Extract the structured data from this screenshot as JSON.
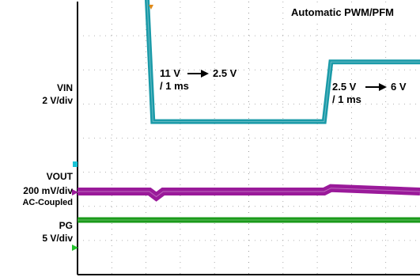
{
  "chart_data": {
    "type": "line",
    "title": "Automatic PWM/PFM",
    "x_divisions": 10,
    "y_divisions": 8,
    "series": [
      {
        "name": "VIN",
        "scale": "2 V/div",
        "color": "#1a9aa8",
        "x": [
          0,
          2.0,
          2.2,
          7.2,
          7.4,
          10
        ],
        "y": [
          11,
          11,
          2.5,
          2.5,
          6,
          6
        ]
      },
      {
        "name": "VOUT",
        "scale": "200 mV/div",
        "coupling": "AC-Coupled",
        "color": "#9a1a9a",
        "x": [
          0,
          2.1,
          2.3,
          2.5,
          7.2,
          7.4,
          10
        ],
        "y": [
          0,
          0,
          -0.03,
          0,
          0,
          0.02,
          0
        ]
      },
      {
        "name": "PG",
        "scale": "5 V/div",
        "color": "#1a9a1a",
        "x": [
          0,
          10
        ],
        "y": [
          5,
          5
        ]
      }
    ],
    "annotations": [
      {
        "lines": [
          "11 V",
          "2.5 V",
          "/ 1 ms"
        ]
      },
      {
        "lines": [
          "2.5 V",
          "6 V",
          "/ 1 ms"
        ]
      }
    ],
    "labels": {
      "vin_name": "VIN",
      "vin_scale": "2 V/div",
      "vout_name": "VOUT",
      "vout_scale": "200 mV/div",
      "vout_coupling": "AC-Coupled",
      "pg_name": "PG",
      "pg_scale": "5 V/div"
    },
    "grid": true,
    "legend": "left"
  }
}
